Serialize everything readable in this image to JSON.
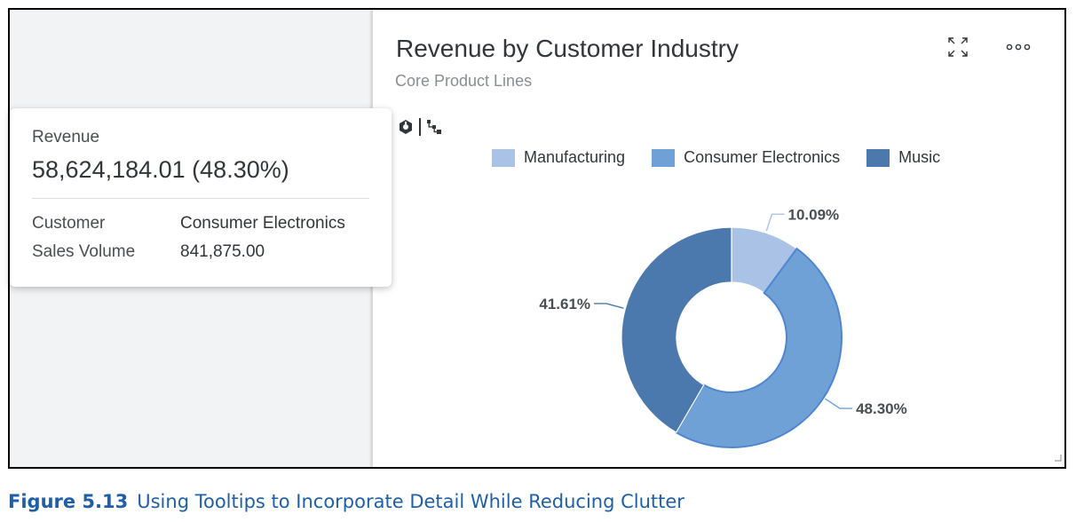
{
  "card": {
    "title": "Revenue by Customer Industry",
    "subtitle": "Core Product Lines",
    "expand_icon": "expand-icon",
    "more_icon": "more-options-icon",
    "toolbar_icons": [
      "drill-icon",
      "hierarchy-icon"
    ]
  },
  "chart_data": {
    "type": "pie",
    "donut": true,
    "title": "Revenue by Customer Industry",
    "subtitle": "Core Product Lines",
    "legend_placement": "top",
    "categories": [
      "Manufacturing",
      "Consumer Electronics",
      "Music"
    ],
    "values": [
      10.09,
      48.3,
      41.61
    ],
    "labels": [
      "10.09%",
      "48.30%",
      "41.61%"
    ],
    "colors": [
      "#a9c2e6",
      "#6fa1d7",
      "#4b79ad"
    ],
    "highlighted": "Consumer Electronics"
  },
  "tooltip": {
    "measure_label": "Revenue",
    "measure_value": "58,624,184.01 (48.30%)",
    "rows": [
      {
        "key": "Customer",
        "value": "Consumer Electronics"
      },
      {
        "key": "Sales Volume",
        "value": "841,875.00"
      }
    ]
  },
  "caption": {
    "number": "Figure 5.13",
    "text": "Using Tooltips to Incorporate Detail While Reducing Clutter"
  }
}
